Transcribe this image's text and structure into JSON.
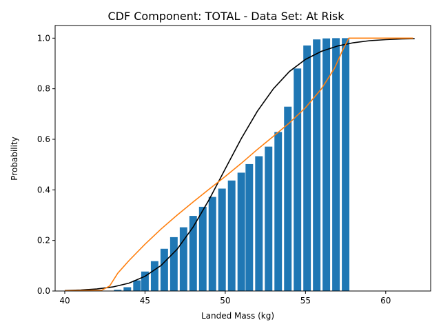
{
  "chart_data": {
    "type": "bar",
    "title": "CDF Component: TOTAL - Data Set: At Risk",
    "xlabel": "Landed Mass (kg)",
    "ylabel": "Probability",
    "xlim": [
      39.4,
      62.8
    ],
    "ylim": [
      0,
      1.05
    ],
    "xticks": [
      40,
      45,
      50,
      55,
      60
    ],
    "xtick_labels": [
      "40",
      "45",
      "50",
      "55",
      "60"
    ],
    "yticks": [
      0,
      0.2,
      0.4,
      0.6,
      0.8,
      1.0
    ],
    "ytick_labels": [
      "0.0",
      "0.2",
      "0.4",
      "0.6",
      "0.8",
      "1.0"
    ],
    "grid": false,
    "bar_width": 0.47,
    "bar_color": "#1f77b4",
    "bars": {
      "x": [
        43.3,
        43.9,
        44.5,
        45.0,
        45.6,
        46.2,
        46.8,
        47.4,
        48.0,
        48.6,
        49.2,
        49.8,
        50.4,
        51.0,
        51.5,
        52.1,
        52.7,
        53.3,
        53.9,
        54.5,
        55.1,
        55.7,
        56.3,
        56.9,
        57.5
      ],
      "values": [
        0.005,
        0.015,
        0.042,
        0.077,
        0.118,
        0.167,
        0.213,
        0.252,
        0.297,
        0.333,
        0.372,
        0.405,
        0.437,
        0.468,
        0.502,
        0.533,
        0.571,
        0.629,
        0.729,
        0.88,
        0.971,
        0.995,
        0.999,
        1.0,
        1.0
      ]
    },
    "series": [
      {
        "color": "#000000",
        "x": [
          40,
          41,
          42,
          43,
          44,
          45,
          46,
          47,
          48,
          49,
          50,
          51,
          52,
          53,
          54,
          55,
          56,
          57,
          58,
          59,
          60,
          61,
          61.8
        ],
        "values": [
          0.002,
          0.004,
          0.008,
          0.016,
          0.031,
          0.058,
          0.101,
          0.165,
          0.253,
          0.362,
          0.483,
          0.603,
          0.711,
          0.8,
          0.868,
          0.916,
          0.948,
          0.969,
          0.982,
          0.99,
          0.994,
          0.997,
          0.998
        ]
      },
      {
        "color": "#ff7f0e",
        "x": [
          40,
          42.3,
          42.8,
          43.3,
          44.0,
          45.0,
          46.0,
          47.0,
          48.0,
          49.0,
          50.0,
          51.0,
          52.0,
          53.0,
          54.0,
          55.0,
          56.0,
          56.8,
          57.3,
          57.7,
          58.5,
          60.0,
          61.7
        ],
        "values": [
          0.001,
          0.003,
          0.02,
          0.07,
          0.12,
          0.185,
          0.245,
          0.3,
          0.352,
          0.403,
          0.453,
          0.505,
          0.56,
          0.612,
          0.665,
          0.725,
          0.8,
          0.88,
          0.95,
          1.0,
          1.0,
          1.0,
          1.0
        ]
      }
    ]
  }
}
